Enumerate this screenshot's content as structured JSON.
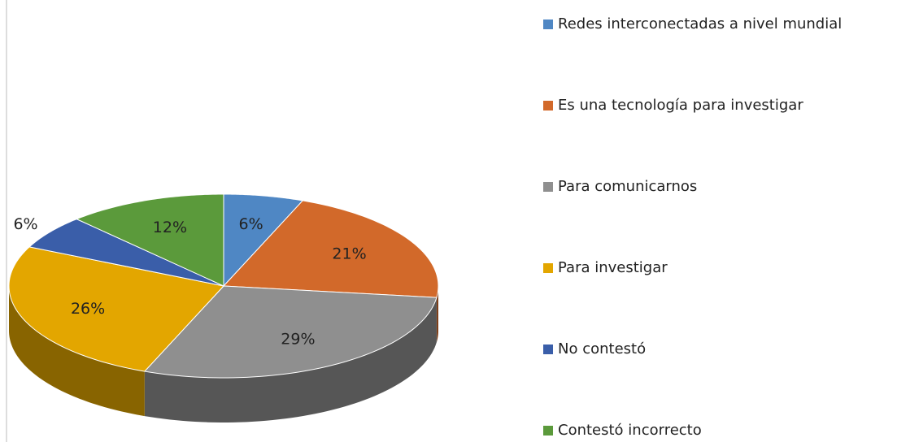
{
  "chart_data": {
    "type": "pie3d",
    "categories": [
      "Redes interconectadas a nivel mundial",
      "Es una tecnología para investigar",
      "Para comunicarnos",
      "Para investigar",
      "No contestó",
      "Contestó incorrecto"
    ],
    "values": [
      6,
      21,
      29,
      26,
      6,
      12
    ],
    "value_labels": [
      "6%",
      "21%",
      "29%",
      "26%",
      "6%",
      "12%"
    ],
    "colors": [
      "#4f87c4",
      "#d2692a",
      "#8f8f8f",
      "#e3a600",
      "#3a5ea9",
      "#5b9a3b"
    ],
    "legend": "right"
  }
}
